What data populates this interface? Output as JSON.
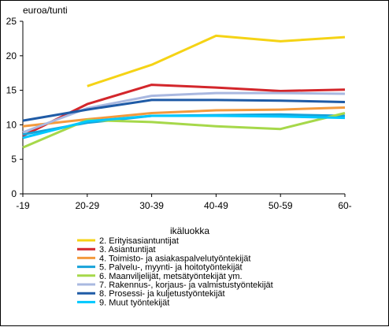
{
  "chart_data": {
    "type": "line",
    "ylabel": "euroa/tunti",
    "xlabel": "ikäluokka",
    "categories": [
      "-19",
      "20-29",
      "30-39",
      "40-49",
      "50-59",
      "60-"
    ],
    "ylim": [
      0,
      25
    ],
    "yticks": [
      0,
      5,
      10,
      15,
      20,
      25
    ],
    "grid": false,
    "legend_position": "bottom",
    "series": [
      {
        "name": "2. Erityisasiantuntijat",
        "color": "#f5d315",
        "values": [
          null,
          15.6,
          18.7,
          22.9,
          22.1,
          22.7
        ]
      },
      {
        "name": "3. Asiantuntijat",
        "color": "#d3262b",
        "values": [
          8.4,
          13.0,
          15.8,
          15.4,
          14.9,
          15.1
        ]
      },
      {
        "name": "4. Toimisto- ja asiakaspalvelutyöntekijät",
        "color": "#f39a3d",
        "values": [
          9.8,
          10.8,
          11.7,
          12.1,
          12.2,
          12.5
        ]
      },
      {
        "name": "5. Palvelu-, myynti- ja hoitotyöntekijät",
        "color": "#17a2d9",
        "values": [
          8.6,
          10.3,
          11.3,
          11.4,
          11.5,
          11.3
        ]
      },
      {
        "name": "6. Maanviljelijät, metsätyöntekijät ym.",
        "color": "#a6d84a",
        "values": [
          6.7,
          10.7,
          10.4,
          9.8,
          9.4,
          11.7
        ]
      },
      {
        "name": "7. Rakennus-, korjaus- ja valmistustyöntekijät",
        "color": "#a9b8e0",
        "values": [
          8.9,
          12.4,
          14.2,
          14.6,
          14.6,
          14.5
        ]
      },
      {
        "name": "8. Prosessi- ja kuljetustyöntekijät",
        "color": "#1f5ba6",
        "values": [
          10.6,
          12.2,
          13.6,
          13.6,
          13.5,
          13.3
        ]
      },
      {
        "name": "9. Muut työntekijät",
        "color": "#00c8ff",
        "values": [
          8.1,
          10.5,
          11.3,
          11.3,
          11.2,
          11.0
        ]
      }
    ]
  }
}
